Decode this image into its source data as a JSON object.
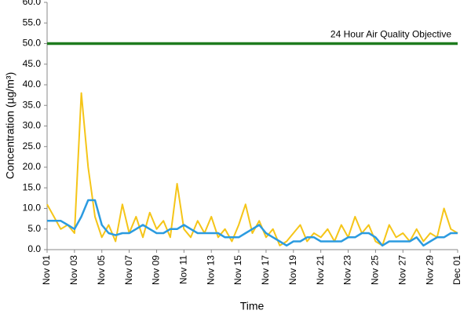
{
  "chart_data": {
    "type": "line",
    "x_label": "Time",
    "y_label": "Concentration (µg/m³)",
    "x": [
      0,
      0.5,
      1,
      1.5,
      2,
      2.5,
      3,
      3.5,
      4,
      4.5,
      5,
      5.5,
      6,
      6.5,
      7,
      7.5,
      8,
      8.5,
      9,
      9.5,
      10,
      10.5,
      11,
      11.5,
      12,
      12.5,
      13,
      13.5,
      14,
      14.5,
      15,
      15.5,
      16,
      16.5,
      17,
      17.5,
      18,
      18.5,
      19,
      19.5,
      20,
      20.5,
      21,
      21.5,
      22,
      22.5,
      23,
      23.5,
      24,
      24.5,
      25,
      25.5,
      26,
      26.5,
      27,
      27.5,
      28,
      28.5,
      29,
      29.5,
      30
    ],
    "series": [
      {
        "color": "#f5c518",
        "values": [
          11,
          8,
          5,
          6,
          4,
          38,
          20,
          8,
          3,
          6,
          2,
          11,
          4,
          8,
          3,
          9,
          5,
          7,
          3,
          16,
          5,
          3,
          7,
          4,
          8,
          3,
          5,
          2,
          6,
          11,
          4,
          7,
          3,
          5,
          1,
          2,
          4,
          6,
          2,
          4,
          3,
          5,
          2,
          6,
          3,
          8,
          4,
          6,
          2,
          1,
          6,
          3,
          4,
          2,
          5,
          2,
          4,
          3,
          10,
          5,
          4
        ]
      },
      {
        "color": "#2b9be0",
        "values": [
          7,
          7,
          7,
          6,
          5,
          8,
          12,
          12,
          6,
          4,
          3.5,
          4,
          4,
          5,
          6,
          5,
          4,
          4,
          5,
          5,
          6,
          5,
          4,
          4,
          4,
          4,
          3,
          3,
          3,
          4,
          5,
          6,
          4,
          3,
          2,
          1,
          2,
          2,
          3,
          3,
          2,
          2,
          2,
          2,
          3,
          3,
          4,
          4,
          3,
          1,
          2,
          2,
          2,
          2,
          3,
          1,
          2,
          3,
          3,
          4,
          4
        ]
      }
    ],
    "objective": {
      "label": "24 Hour Air Quality Objective",
      "value": 50,
      "color": "#1e7b1e"
    },
    "xlim": [
      0,
      30
    ],
    "xticks": [
      {
        "value": 0,
        "label": "Nov 01"
      },
      {
        "value": 2,
        "label": "Nov 03"
      },
      {
        "value": 4,
        "label": "Nov 05"
      },
      {
        "value": 6,
        "label": "Nov 07"
      },
      {
        "value": 8,
        "label": "Nov 09"
      },
      {
        "value": 10,
        "label": "Nov 11"
      },
      {
        "value": 12,
        "label": "Nov 13"
      },
      {
        "value": 14,
        "label": "Nov 15"
      },
      {
        "value": 16,
        "label": "Nov 17"
      },
      {
        "value": 18,
        "label": "Nov 19"
      },
      {
        "value": 20,
        "label": "Nov 21"
      },
      {
        "value": 22,
        "label": "Nov 23"
      },
      {
        "value": 24,
        "label": "Nov 25"
      },
      {
        "value": 26,
        "label": "Nov 27"
      },
      {
        "value": 28,
        "label": "Nov 29"
      },
      {
        "value": 30,
        "label": "Dec 01"
      }
    ],
    "ylim": [
      0,
      60
    ],
    "yticks": [
      {
        "value": 0,
        "label": "0.0"
      },
      {
        "value": 5,
        "label": "5.0"
      },
      {
        "value": 10,
        "label": "10.0"
      },
      {
        "value": 15,
        "label": "15.0"
      },
      {
        "value": 20,
        "label": "20.0"
      },
      {
        "value": 25,
        "label": "25.0"
      },
      {
        "value": 30,
        "label": "30.0"
      },
      {
        "value": 35,
        "label": "35.0"
      },
      {
        "value": 40,
        "label": "40.0"
      },
      {
        "value": 45,
        "label": "45.0"
      },
      {
        "value": 50,
        "label": "50.0"
      },
      {
        "value": 55,
        "label": "55.0"
      },
      {
        "value": 60,
        "label": "60.0"
      }
    ],
    "grid": false
  }
}
